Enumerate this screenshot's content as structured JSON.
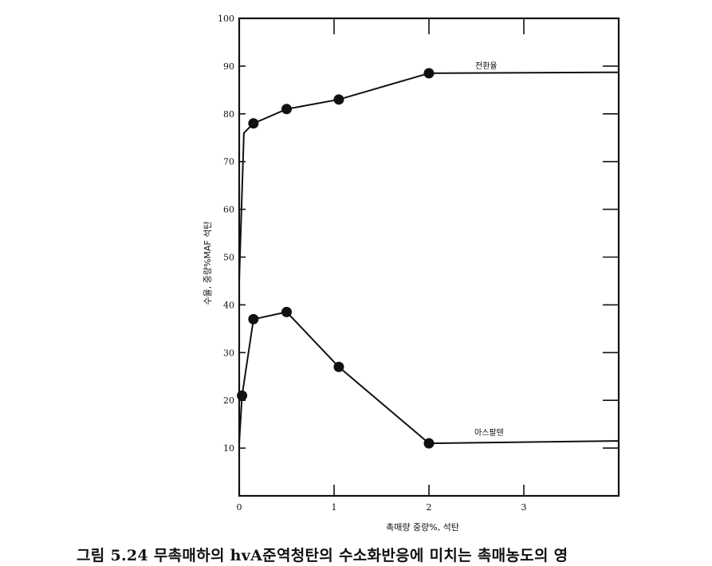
{
  "caption": "그림 5.24 무촉매하의 hvA준역청탄의 수소화반응에 미치는 촉매농도의 영",
  "chart_data": {
    "type": "line",
    "title": "",
    "xlabel": "촉매량 중량%, 석탄",
    "ylabel": "수율, 중량%MAF 석탄",
    "xlim": [
      0,
      4
    ],
    "ylim": [
      0,
      100
    ],
    "xticks": [
      0,
      1,
      2,
      3
    ],
    "yticks": [
      10,
      20,
      30,
      40,
      50,
      60,
      70,
      80,
      90,
      100
    ],
    "ytick_labels": [
      "10",
      "20",
      "30",
      "40",
      "50",
      "60",
      "70",
      "80",
      "90",
      "100"
    ],
    "grid": false,
    "series": [
      {
        "name": "전환율",
        "x": [
          0,
          0.05,
          0.15,
          0.5,
          1.05,
          2.0,
          4.0
        ],
        "y": [
          45,
          76,
          78,
          81,
          83,
          88.5,
          88.7
        ],
        "markers": [
          false,
          false,
          true,
          true,
          true,
          true,
          false
        ]
      },
      {
        "name": "아스팔텐",
        "x": [
          0,
          0.03,
          0.15,
          0.5,
          1.05,
          2.0,
          4.0
        ],
        "y": [
          11,
          21,
          37,
          38.5,
          27,
          11,
          11.5
        ],
        "markers": [
          false,
          true,
          true,
          true,
          true,
          true,
          false
        ]
      }
    ]
  }
}
